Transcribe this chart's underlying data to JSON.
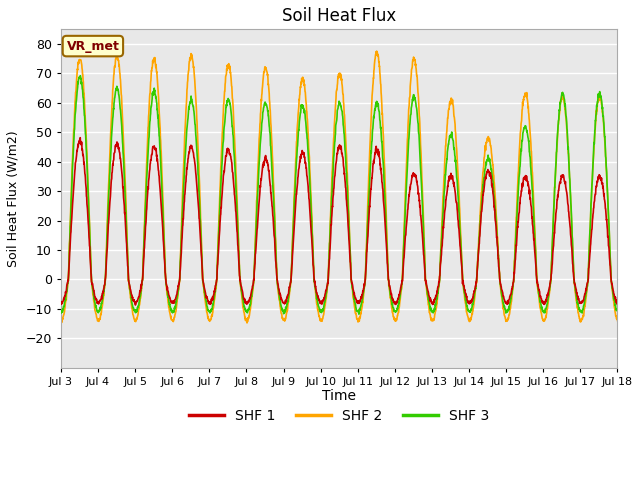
{
  "title": "Soil Heat Flux",
  "xlabel": "Time",
  "ylabel": "Soil Heat Flux (W/m2)",
  "ylim": [
    -30,
    85
  ],
  "yticks": [
    -20,
    -10,
    0,
    10,
    20,
    30,
    40,
    50,
    60,
    70,
    80
  ],
  "bg_color": "#ffffff",
  "plot_bg_color": "#e8e8e8",
  "grid_color": "#ffffff",
  "shf1_color": "#cc0000",
  "shf2_color": "#ffa500",
  "shf3_color": "#33cc00",
  "legend_labels": [
    "SHF 1",
    "SHF 2",
    "SHF 3"
  ],
  "annotation_text": "VR_met",
  "annotation_bg": "#ffffcc",
  "annotation_border": "#996600",
  "annotation_text_color": "#800000",
  "num_days": 15,
  "xtick_labels": [
    "Jul 3",
    "Jul 4",
    "Jul 5",
    "Jul 6",
    "Jul 7",
    "Jul 8",
    "Jul 9",
    "Jul 10",
    "Jul 11",
    "Jul 12",
    "Jul 13",
    "Jul 14",
    "Jul 15",
    "Jul 16",
    "Jul 17",
    "Jul 18"
  ],
  "shf1_peaks": [
    47,
    46,
    45,
    45,
    44,
    41,
    43,
    45,
    44,
    36,
    35,
    37,
    35,
    35,
    35
  ],
  "shf2_peaks": [
    75,
    76,
    75,
    76,
    73,
    72,
    68,
    70,
    77,
    75,
    61,
    48,
    63,
    62,
    62
  ],
  "shf3_peaks": [
    69,
    65,
    64,
    61,
    61,
    60,
    59,
    60,
    60,
    62,
    49,
    41,
    52,
    63,
    63
  ],
  "shf1_trough": -8,
  "shf2_trough": -14,
  "shf3_trough": -11,
  "pts_per_day": 144
}
